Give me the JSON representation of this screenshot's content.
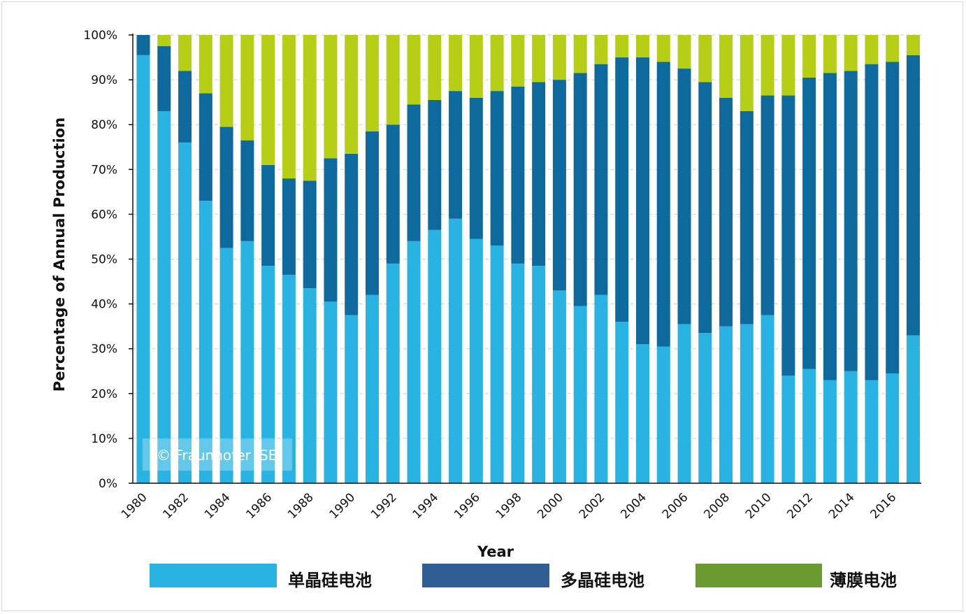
{
  "chart_data": {
    "type": "bar",
    "stacked": true,
    "ylabel": "Percentage of Annual Production",
    "xlabel": "Year",
    "ylim": [
      0,
      100
    ],
    "y_ticks": [
      "0%",
      "10%",
      "20%",
      "30%",
      "40%",
      "50%",
      "60%",
      "70%",
      "80%",
      "90%",
      "100%"
    ],
    "categories": [
      "1980",
      "1981",
      "1982",
      "1983",
      "1984",
      "1985",
      "1986",
      "1987",
      "1988",
      "1989",
      "1990",
      "1991",
      "1992",
      "1993",
      "1994",
      "1995",
      "1996",
      "1997",
      "1998",
      "1999",
      "2000",
      "2001",
      "2002",
      "2003",
      "2004",
      "2005",
      "2006",
      "2007",
      "2008",
      "2009",
      "2010",
      "2011",
      "2012",
      "2013",
      "2014",
      "2015",
      "2016",
      "2017"
    ],
    "x_tick_labels": [
      "1980",
      "1982",
      "1984",
      "1986",
      "1988",
      "1990",
      "1992",
      "1994",
      "1996",
      "1998",
      "2000",
      "2002",
      "2004",
      "2006",
      "2008",
      "2010",
      "2012",
      "2014",
      "2016"
    ],
    "series": [
      {
        "name": "单晶硅电池",
        "color": "#29b3e3",
        "values": [
          95.5,
          83,
          76,
          63,
          52.5,
          54,
          48.5,
          46.5,
          43.5,
          40.5,
          37.5,
          42,
          49,
          54,
          56.5,
          59,
          54.5,
          53,
          49,
          48.5,
          43,
          39.5,
          42,
          36,
          31,
          30.5,
          35.5,
          33.5,
          35,
          35.5,
          37.5,
          24,
          25.5,
          23,
          25,
          23,
          24.5,
          33
        ]
      },
      {
        "name": "多晶硅电池",
        "color": "#0e6a9d",
        "values": [
          4.5,
          14.5,
          16,
          24,
          27,
          22.5,
          22.5,
          21.5,
          24,
          32,
          36,
          36.5,
          31,
          30.5,
          29,
          28.5,
          31.5,
          34.5,
          39.5,
          41,
          47,
          52,
          51.5,
          59,
          64,
          63.5,
          57,
          56,
          51,
          47.5,
          49,
          62.5,
          65,
          68.5,
          67,
          70.5,
          69.5,
          62.5
        ]
      },
      {
        "name": "薄膜电池",
        "color": "#b6cf16",
        "values": [
          0,
          2.5,
          8,
          13,
          20.5,
          23.5,
          29,
          32,
          32.5,
          27.5,
          26.5,
          21.5,
          20,
          15.5,
          14.5,
          12.5,
          14,
          12.5,
          11.5,
          10.5,
          10,
          8.5,
          6.5,
          5,
          5,
          6,
          7.5,
          10.5,
          14,
          17,
          13.5,
          13.5,
          9.5,
          8.5,
          8,
          6.5,
          6,
          4.5
        ]
      }
    ],
    "legend": [
      {
        "label": "单晶硅电池",
        "color": "#29b3e3"
      },
      {
        "label": "多晶硅电池",
        "color": "#2f5d94"
      },
      {
        "label": "薄膜电池",
        "color": "#6a9a30"
      }
    ],
    "watermark": "© Fraunhofer ISE"
  }
}
